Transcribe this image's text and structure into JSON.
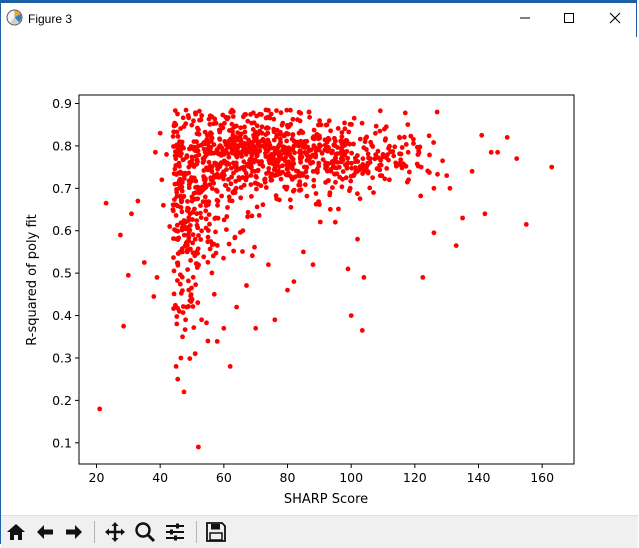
{
  "window": {
    "title": "Figure 3"
  },
  "toolbar": {
    "buttons": [
      {
        "name": "home-icon"
      },
      {
        "name": "back-arrow-icon"
      },
      {
        "name": "forward-arrow-icon"
      },
      {
        "name": "pan-icon"
      },
      {
        "name": "zoom-icon"
      },
      {
        "name": "configure-subplots-icon"
      },
      {
        "name": "save-icon"
      }
    ]
  },
  "chart_data": {
    "type": "scatter",
    "title": "",
    "xlabel": "SHARP Score",
    "ylabel": "R-squared of poly fit",
    "xlim": [
      14.5,
      170
    ],
    "ylim": [
      0.05,
      0.92
    ],
    "xticks": [
      20,
      40,
      60,
      80,
      100,
      120,
      140,
      160
    ],
    "yticks": [
      0.1,
      0.2,
      0.3,
      0.4,
      0.5,
      0.6,
      0.7,
      0.8,
      0.9
    ],
    "grid": false,
    "marker_color": "#ff0000",
    "series": [
      {
        "x": [
          21,
          23,
          27.5,
          28.5,
          30,
          31,
          33,
          35,
          38,
          38.5,
          39,
          40,
          40.5,
          41,
          42,
          43,
          45,
          45.5,
          46,
          46.5,
          47,
          47.5,
          48,
          48.5,
          49,
          50,
          51,
          52,
          53,
          55,
          57,
          60,
          62,
          64,
          66,
          70,
          74,
          76,
          80,
          82,
          85,
          88,
          92,
          95,
          99,
          100,
          102,
          103.5,
          104,
          107,
          112,
          122.5,
          126,
          127,
          131,
          133,
          135,
          138,
          141,
          142,
          144,
          146,
          149,
          152,
          155,
          163,
          44,
          45,
          46,
          47,
          48,
          49,
          50,
          51,
          52,
          54,
          56,
          58,
          60,
          63,
          66,
          69,
          72,
          75,
          78,
          82,
          86,
          90,
          94,
          98,
          102,
          106,
          110,
          114,
          118,
          122,
          126,
          130
        ],
        "y": [
          0.18,
          0.665,
          0.59,
          0.375,
          0.495,
          0.64,
          0.67,
          0.525,
          0.445,
          0.785,
          0.49,
          0.83,
          0.72,
          0.66,
          0.78,
          0.61,
          0.28,
          0.25,
          0.41,
          0.3,
          0.35,
          0.22,
          0.39,
          0.55,
          0.46,
          0.68,
          0.31,
          0.09,
          0.39,
          0.34,
          0.45,
          0.37,
          0.28,
          0.42,
          0.6,
          0.37,
          0.52,
          0.39,
          0.46,
          0.48,
          0.55,
          0.52,
          0.76,
          0.62,
          0.51,
          0.4,
          0.58,
          0.365,
          0.49,
          0.69,
          0.72,
          0.49,
          0.595,
          0.88,
          0.7,
          0.565,
          0.63,
          0.74,
          0.825,
          0.64,
          0.785,
          0.785,
          0.82,
          0.77,
          0.615,
          0.75,
          0.65,
          0.6,
          0.7,
          0.55,
          0.62,
          0.75,
          0.72,
          0.58,
          0.8,
          0.7,
          0.82,
          0.66,
          0.78,
          0.76,
          0.8,
          0.74,
          0.83,
          0.78,
          0.77,
          0.8,
          0.75,
          0.79,
          0.76,
          0.78,
          0.74,
          0.77,
          0.78,
          0.76,
          0.72,
          0.75,
          0.7,
          0.73
        ]
      }
    ],
    "cloud": {
      "density_points": 1100,
      "core_regions": [
        {
          "cx": 68,
          "cy": 0.79,
          "sx": 12,
          "sy": 0.05,
          "w": 0.38
        },
        {
          "cx": 95,
          "cy": 0.77,
          "sx": 14,
          "sy": 0.045,
          "w": 0.3
        },
        {
          "cx": 48,
          "cy": 0.62,
          "sx": 3.5,
          "sy": 0.13,
          "w": 0.2
        },
        {
          "cx": 57,
          "cy": 0.68,
          "sx": 6,
          "sy": 0.1,
          "w": 0.12
        }
      ]
    }
  }
}
